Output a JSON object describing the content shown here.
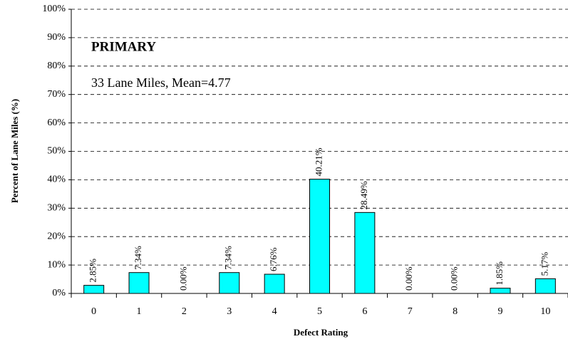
{
  "chart_data": {
    "type": "bar",
    "annotations": [
      "PRIMARY",
      "33 Lane Miles, Mean=4.77"
    ],
    "annotation_colors": [
      "#ff0000",
      "#000000"
    ],
    "x_label": "Defect Rating",
    "y_label": "Percent of Lane Miles (%)",
    "categories": [
      "0",
      "1",
      "2",
      "3",
      "4",
      "5",
      "6",
      "7",
      "8",
      "9",
      "10"
    ],
    "values": [
      2.85,
      7.34,
      0.0,
      7.34,
      6.76,
      40.21,
      28.49,
      0.0,
      0.0,
      1.85,
      5.17
    ],
    "value_labels": [
      "2.85%",
      "7.34%",
      "0.00%",
      "7.34%",
      "6.76%",
      "40.21%",
      "28.49%",
      "0.00%",
      "0.00%",
      "1.85%",
      "5.17%"
    ],
    "color": "#00ffff",
    "ylim": [
      0,
      100
    ],
    "yticks": [
      {
        "value": 0,
        "label": "0%"
      },
      {
        "value": 10,
        "label": "10%"
      },
      {
        "value": 20,
        "label": "20%"
      },
      {
        "value": 30,
        "label": "30%"
      },
      {
        "value": 40,
        "label": "40%"
      },
      {
        "value": 50,
        "label": "50%"
      },
      {
        "value": 60,
        "label": "60%"
      },
      {
        "value": 70,
        "label": "70%"
      },
      {
        "value": 80,
        "label": "80%"
      },
      {
        "value": 90,
        "label": "90%"
      },
      {
        "value": 100,
        "label": "100%"
      }
    ],
    "grid": true
  }
}
